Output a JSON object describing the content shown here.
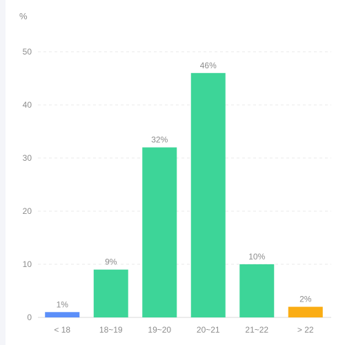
{
  "chart_data": {
    "type": "bar",
    "unit_label": "%",
    "categories": [
      "< 18",
      "18~19",
      "19~20",
      "20~21",
      "21~22",
      "> 22"
    ],
    "values": [
      1,
      9,
      32,
      46,
      10,
      2
    ],
    "data_labels": [
      "1%",
      "9%",
      "32%",
      "46%",
      "10%",
      "2%"
    ],
    "colors": [
      "#5b8ff9",
      "#3dd598",
      "#3dd598",
      "#3dd598",
      "#3dd598",
      "#faad14"
    ],
    "ylim": [
      0,
      50
    ],
    "yticks": [
      "0",
      "10",
      "20",
      "30",
      "40",
      "50"
    ],
    "grid": true,
    "legend": "none"
  }
}
